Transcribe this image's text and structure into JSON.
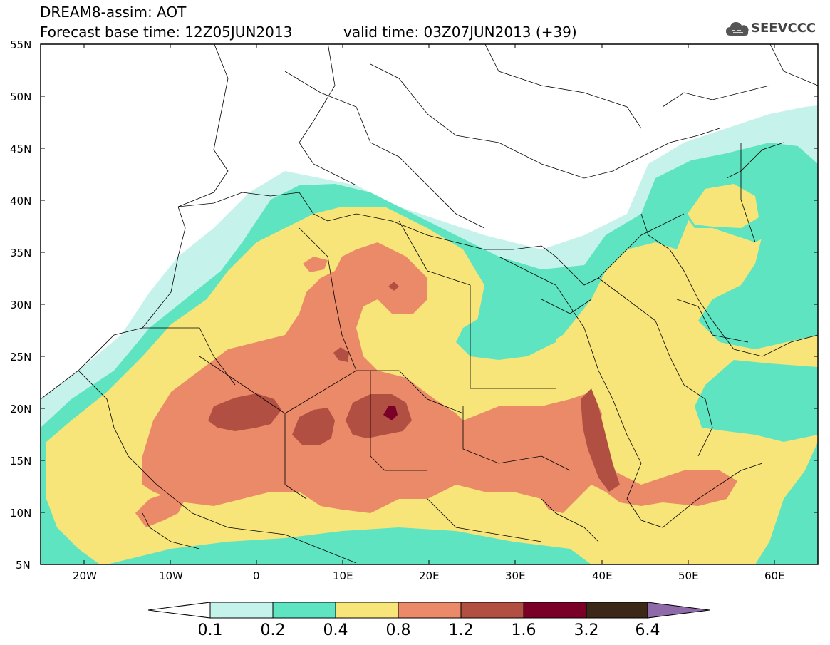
{
  "title": {
    "line1": "DREAM8-assim: AOT",
    "base_time": "Forecast base time: 12Z05JUN2013",
    "valid_time": "valid time: 03Z07JUN2013 (+39)"
  },
  "logo": {
    "icon": "cloud-icon",
    "text": "SEEVCCC"
  },
  "map": {
    "projection": "lat-lon",
    "lon_range": [
      -25,
      65
    ],
    "lat_range": [
      5,
      55
    ],
    "lat_labels": [
      "55N",
      "50N",
      "45N",
      "40N",
      "35N",
      "30N",
      "25N",
      "20N",
      "15N",
      "10N",
      "5N"
    ],
    "lon_labels": [
      "20W",
      "10W",
      "0",
      "10E",
      "20E",
      "30E",
      "40E",
      "50E",
      "60E"
    ]
  },
  "colorbar": {
    "labels": [
      "0.1",
      "0.2",
      "0.4",
      "0.8",
      "1.2",
      "1.6",
      "3.2",
      "6.4"
    ],
    "colors": [
      "#ffffff",
      "#c6f2ec",
      "#5ee4c0",
      "#f7e57a",
      "#eb8a68",
      "#b14f42",
      "#7a0027",
      "#3b2816",
      "#8f6aa8"
    ]
  }
}
